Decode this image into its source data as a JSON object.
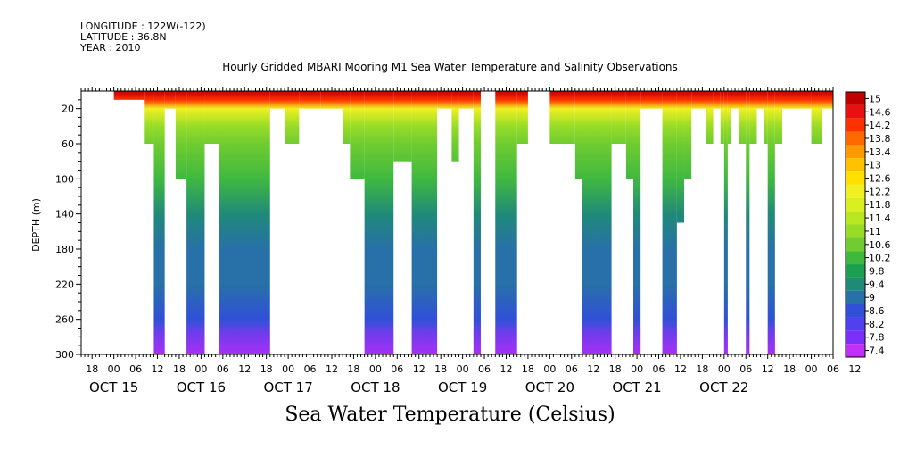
{
  "header": {
    "longitude": "LONGITUDE : 122W(-122)",
    "latitude": "LATITUDE : 36.8N",
    "year": "YEAR : 2010"
  },
  "title": "Hourly Gridded MBARI Mooring M1 Sea Water Temperature and Salinity Observations",
  "footer_title": "Sea Water Temperature (Celsius)",
  "chart_data": {
    "type": "heatmap",
    "title": "Hourly Gridded MBARI Mooring M1 Sea Water Temperature and Salinity Observations",
    "xlabel": "",
    "ylabel": "DEPTH (m)",
    "variable": "Sea Water Temperature (Celsius)",
    "x_hours_range": [
      -9,
      198
    ],
    "y_range": [
      0,
      300
    ],
    "y_ticks": [
      20,
      60,
      100,
      140,
      180,
      220,
      260,
      300
    ],
    "x_hour_ticks": [
      "18",
      "00",
      "06",
      "12",
      "18",
      "00",
      "06",
      "12",
      "18",
      "00",
      "06",
      "12",
      "18",
      "00",
      "06",
      "12",
      "18",
      "00",
      "06",
      "12",
      "18",
      "00",
      "06",
      "12",
      "18",
      "00",
      "06",
      "12",
      "18",
      "00",
      "06",
      "12",
      "18",
      "00",
      "06",
      "12"
    ],
    "x_date_labels": [
      "OCT 15",
      "OCT 16",
      "OCT 17",
      "OCT 18",
      "OCT 19",
      "OCT 20",
      "OCT 21",
      "OCT 22"
    ],
    "colorbar_levels": [
      "15",
      "14.6",
      "14.2",
      "13.8",
      "13.4",
      "13",
      "12.6",
      "12.2",
      "11.8",
      "11.4",
      "11",
      "10.6",
      "10.2",
      "9.8",
      "9.4",
      "9",
      "8.6",
      "8.2",
      "7.8",
      "7.4"
    ],
    "colorbar_colors": [
      "#c00000",
      "#e81010",
      "#ff3000",
      "#ff6a00",
      "#ff9a00",
      "#ffc000",
      "#ffe000",
      "#f0f020",
      "#d8f020",
      "#b8e820",
      "#98dc28",
      "#70cc30",
      "#40b840",
      "#1ca050",
      "#208a78",
      "#2870a8",
      "#3050d8",
      "#5040f0",
      "#7a30f8",
      "#c030f8"
    ],
    "profile_temperatures": [
      {
        "depth": 0,
        "value": 15
      },
      {
        "depth": 10,
        "value": 14.0
      },
      {
        "depth": 20,
        "value": 12.2
      },
      {
        "depth": 40,
        "value": 11.0
      },
      {
        "depth": 60,
        "value": 10.6
      },
      {
        "depth": 100,
        "value": 10.0
      },
      {
        "depth": 140,
        "value": 9.6
      },
      {
        "depth": 180,
        "value": 9.2
      },
      {
        "depth": 220,
        "value": 8.8
      },
      {
        "depth": 260,
        "value": 8.4
      },
      {
        "depth": 300,
        "value": 7.6
      }
    ],
    "data_columns": [
      {
        "start": 0,
        "end": 8.5,
        "depth_max": 10
      },
      {
        "start": 8.5,
        "end": 11,
        "depth_max": 60
      },
      {
        "start": 11,
        "end": 14,
        "depth_max": 300
      },
      {
        "start": 14,
        "end": 17,
        "depth_max": 20
      },
      {
        "start": 17,
        "end": 20,
        "depth_max": 100
      },
      {
        "start": 20,
        "end": 25,
        "depth_max": 300
      },
      {
        "start": 25,
        "end": 29,
        "depth_max": 60
      },
      {
        "start": 29,
        "end": 43,
        "depth_max": 300
      },
      {
        "start": 43,
        "end": 47,
        "depth_max": 20
      },
      {
        "start": 47,
        "end": 51,
        "depth_max": 60
      },
      {
        "start": 51,
        "end": 57,
        "depth_max": 20
      },
      {
        "start": 57,
        "end": 63,
        "depth_max": 20
      },
      {
        "start": 63,
        "end": 65,
        "depth_max": 60
      },
      {
        "start": 65,
        "end": 69,
        "depth_max": 100
      },
      {
        "start": 69,
        "end": 77,
        "depth_max": 300
      },
      {
        "start": 77,
        "end": 82,
        "depth_max": 80
      },
      {
        "start": 82,
        "end": 89,
        "depth_max": 300
      },
      {
        "start": 89,
        "end": 93,
        "depth_max": 20
      },
      {
        "start": 93,
        "end": 95,
        "depth_max": 80
      },
      {
        "start": 95,
        "end": 99,
        "depth_max": 20
      },
      {
        "start": 99,
        "end": 101,
        "depth_max": 300
      },
      {
        "start": 105,
        "end": 111,
        "depth_max": 300
      },
      {
        "start": 111,
        "end": 114,
        "depth_max": 60
      },
      {
        "start": 120,
        "end": 127,
        "depth_max": 60
      },
      {
        "start": 127,
        "end": 129,
        "depth_max": 100
      },
      {
        "start": 129,
        "end": 137,
        "depth_max": 300
      },
      {
        "start": 137,
        "end": 141,
        "depth_max": 60
      },
      {
        "start": 141,
        "end": 143,
        "depth_max": 100
      },
      {
        "start": 143,
        "end": 145,
        "depth_max": 300
      },
      {
        "start": 145,
        "end": 151,
        "depth_max": 20
      },
      {
        "start": 151,
        "end": 155,
        "depth_max": 300
      },
      {
        "start": 155,
        "end": 157,
        "depth_max": 150
      },
      {
        "start": 157,
        "end": 159,
        "depth_max": 100
      },
      {
        "start": 159,
        "end": 163,
        "depth_max": 20
      },
      {
        "start": 163,
        "end": 165,
        "depth_max": 60
      },
      {
        "start": 165,
        "end": 167,
        "depth_max": 20
      },
      {
        "start": 167,
        "end": 168,
        "depth_max": 60
      },
      {
        "start": 168,
        "end": 169,
        "depth_max": 300
      },
      {
        "start": 169,
        "end": 170,
        "depth_max": 60
      },
      {
        "start": 170,
        "end": 172,
        "depth_max": 20
      },
      {
        "start": 172,
        "end": 174,
        "depth_max": 60
      },
      {
        "start": 174,
        "end": 175,
        "depth_max": 300
      },
      {
        "start": 175,
        "end": 177,
        "depth_max": 60
      },
      {
        "start": 177,
        "end": 179,
        "depth_max": 20
      },
      {
        "start": 179,
        "end": 180,
        "depth_max": 60
      },
      {
        "start": 180,
        "end": 182,
        "depth_max": 300
      },
      {
        "start": 182,
        "end": 184,
        "depth_max": 60
      },
      {
        "start": 184,
        "end": 192,
        "depth_max": 20
      },
      {
        "start": 192,
        "end": 195,
        "depth_max": 60
      },
      {
        "start": 195,
        "end": 198,
        "depth_max": 20
      }
    ],
    "data_bottom_columns": [
      {
        "start": 11,
        "end": 14
      },
      {
        "start": 20,
        "end": 25
      },
      {
        "start": 29,
        "end": 43
      },
      {
        "start": 69,
        "end": 77
      },
      {
        "start": 82,
        "end": 89
      },
      {
        "start": 99,
        "end": 101
      },
      {
        "start": 105,
        "end": 111
      },
      {
        "start": 129,
        "end": 137
      },
      {
        "start": 143,
        "end": 145
      },
      {
        "start": 151,
        "end": 155
      },
      {
        "start": 168,
        "end": 169
      },
      {
        "start": 174,
        "end": 175
      },
      {
        "start": 180,
        "end": 182
      }
    ]
  }
}
